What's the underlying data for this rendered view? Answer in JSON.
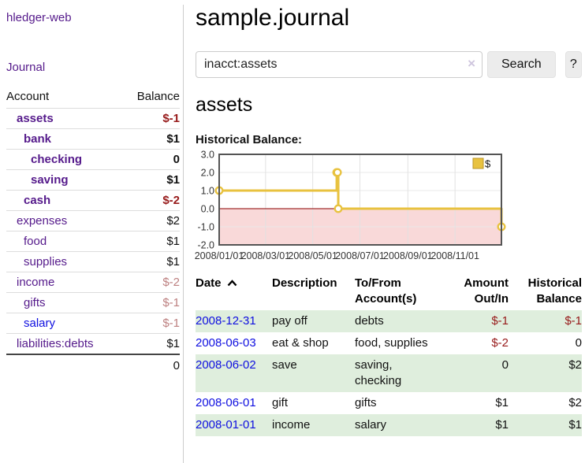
{
  "sidebar": {
    "brand": "hledger-web",
    "nav": [
      {
        "label": "Journal"
      }
    ],
    "accounts_table": {
      "headers": [
        "Account",
        "Balance"
      ],
      "rows": [
        {
          "account": "assets",
          "indent": 1,
          "bold": true,
          "balance": "$-1",
          "balance_style": "negative-strong",
          "link_color": "purple"
        },
        {
          "account": "bank",
          "indent": 2,
          "bold": true,
          "balance": "$1",
          "balance_style": "normal-strong",
          "link_color": "purple"
        },
        {
          "account": "checking",
          "indent": 3,
          "bold": true,
          "balance": "0",
          "balance_style": "normal-strong",
          "link_color": "purple"
        },
        {
          "account": "saving",
          "indent": 3,
          "bold": true,
          "balance": "$1",
          "balance_style": "normal-strong",
          "link_color": "purple"
        },
        {
          "account": "cash",
          "indent": 2,
          "bold": true,
          "balance": "$-2",
          "balance_style": "negative-strong",
          "link_color": "purple"
        },
        {
          "account": "expenses",
          "indent": 1,
          "bold": false,
          "balance": "$2",
          "balance_style": "normal",
          "link_color": "purple"
        },
        {
          "account": "food",
          "indent": 2,
          "bold": false,
          "balance": "$1",
          "balance_style": "normal",
          "link_color": "purple"
        },
        {
          "account": "supplies",
          "indent": 2,
          "bold": false,
          "balance": "$1",
          "balance_style": "normal",
          "link_color": "purple"
        },
        {
          "account": "income",
          "indent": 1,
          "bold": false,
          "balance": "$-2",
          "balance_style": "negative-muted",
          "link_color": "purple"
        },
        {
          "account": "gifts",
          "indent": 2,
          "bold": false,
          "balance": "$-1",
          "balance_style": "negative-muted",
          "link_color": "purple"
        },
        {
          "account": "salary",
          "indent": 2,
          "bold": false,
          "balance": "$-1",
          "balance_style": "negative-muted",
          "link_color": "blue"
        },
        {
          "account": "liabilities:debts",
          "indent": 1,
          "bold": false,
          "balance": "$1",
          "balance_style": "normal",
          "link_color": "purple"
        }
      ],
      "total": "0"
    }
  },
  "header": {
    "title": "sample.journal"
  },
  "search": {
    "value": "inacct:assets",
    "clear_icon": "×",
    "button": "Search",
    "help_button": "?"
  },
  "account_view": {
    "title": "assets",
    "chart_label": "Historical Balance:"
  },
  "chart_data": {
    "type": "line",
    "step": true,
    "title": "Historical Balance",
    "series": [
      {
        "name": "$",
        "color": "#e8c23f",
        "points": [
          [
            "2008-01-01",
            1
          ],
          [
            "2008-06-01",
            2
          ],
          [
            "2008-06-02",
            2
          ],
          [
            "2008-06-03",
            0
          ],
          [
            "2008-12-31",
            -1
          ]
        ]
      }
    ],
    "x_range": [
      "2008-01-01",
      "2008-12-31"
    ],
    "x_ticks": [
      "2008/01/01",
      "2008/03/01",
      "2008/05/01",
      "2008/07/01",
      "2008/09/01",
      "2008/11/01"
    ],
    "y_ticks": [
      -2,
      -1,
      0,
      1,
      2,
      3
    ],
    "ylim": [
      -2,
      3
    ],
    "grid": true,
    "legend_position": "top-right",
    "negative_region_color": "#f9d9d9",
    "zero_line_color": "#8b0000"
  },
  "register": {
    "headers": [
      "Date",
      "Description",
      "To/From Account(s)",
      "Amount Out/In",
      "Historical Balance"
    ],
    "rows": [
      {
        "date": "2008-12-31",
        "description": "pay off",
        "accounts": "debts",
        "amount": "$-1",
        "amount_negative": true,
        "balance": "$-1",
        "balance_negative": true
      },
      {
        "date": "2008-06-03",
        "description": "eat & shop",
        "accounts": "food, supplies",
        "amount": "$-2",
        "amount_negative": true,
        "balance": "0",
        "balance_negative": false
      },
      {
        "date": "2008-06-02",
        "description": "save",
        "accounts": "saving, checking",
        "amount": "0",
        "amount_negative": false,
        "balance": "$2",
        "balance_negative": false
      },
      {
        "date": "2008-06-01",
        "description": "gift",
        "accounts": "gifts",
        "amount": "$1",
        "amount_negative": false,
        "balance": "$2",
        "balance_negative": false
      },
      {
        "date": "2008-01-01",
        "description": "income",
        "accounts": "salary",
        "amount": "$1",
        "amount_negative": false,
        "balance": "$1",
        "balance_negative": false
      }
    ]
  },
  "colors": {
    "link_purple": "#551a8b",
    "link_blue": "#0f0fe0",
    "negative_strong": "#971a1a",
    "negative_muted": "#bd8080",
    "row_green": "#dfeedd",
    "series_gold": "#e8c23f"
  }
}
